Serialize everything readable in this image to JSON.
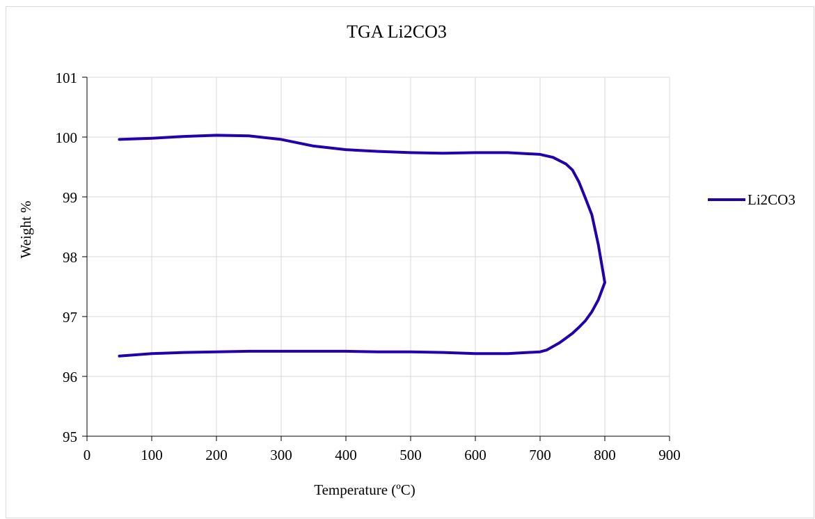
{
  "chart_data": {
    "type": "line",
    "title": "TGA Li2CO3",
    "xlabel": "Temperature (ºC)",
    "ylabel": "Weight %",
    "xlim": [
      0,
      900
    ],
    "ylim": [
      95,
      101
    ],
    "xticks": [
      "0",
      "100",
      "200",
      "300",
      "400",
      "500",
      "600",
      "700",
      "800",
      "900"
    ],
    "yticks": [
      "95",
      "96",
      "97",
      "98",
      "99",
      "100",
      "101"
    ],
    "grid": true,
    "legend_position": "right",
    "series": [
      {
        "name": "Li2CO3",
        "color": "#2200aa",
        "x": [
          50,
          100,
          150,
          200,
          250,
          300,
          350,
          400,
          450,
          500,
          550,
          600,
          650,
          700,
          720,
          740,
          750,
          760,
          770,
          780,
          790,
          800,
          790,
          780,
          770,
          760,
          750,
          740,
          730,
          720,
          710,
          700,
          650,
          600,
          550,
          500,
          450,
          400,
          350,
          300,
          250,
          200,
          150,
          100,
          50
        ],
        "y": [
          99.96,
          99.98,
          100.01,
          100.03,
          100.02,
          99.96,
          99.85,
          99.79,
          99.76,
          99.74,
          99.73,
          99.74,
          99.74,
          99.71,
          99.66,
          99.55,
          99.45,
          99.25,
          98.98,
          98.7,
          98.2,
          97.57,
          97.28,
          97.08,
          96.93,
          96.82,
          96.72,
          96.64,
          96.56,
          96.5,
          96.44,
          96.41,
          96.38,
          96.38,
          96.4,
          96.41,
          96.41,
          96.42,
          96.42,
          96.42,
          96.42,
          96.41,
          96.4,
          96.38,
          96.34
        ]
      }
    ]
  }
}
